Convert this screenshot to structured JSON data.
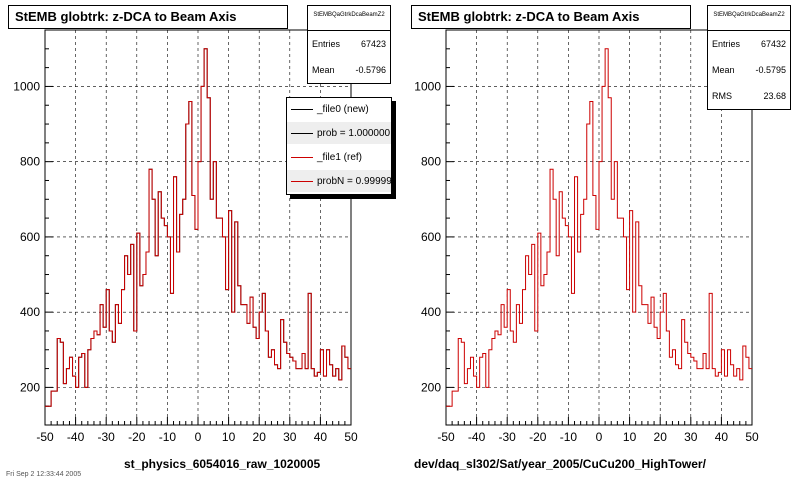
{
  "panels": [
    {
      "title": "StEMB globtrk: z-DCA to Beam Axis",
      "stats": {
        "name": "StEMBQaGtrkDcaBeamZ2",
        "rows": [
          {
            "label": "Entries",
            "value": "67423"
          },
          {
            "label": "Mean",
            "value": "-0.5796"
          }
        ]
      },
      "legend": [
        {
          "label": "_file0 (new)",
          "color": "#000000",
          "shaded": false
        },
        {
          "label": "prob = 1.000000",
          "color": "#000000",
          "shaded": true
        },
        {
          "label": "_file1 (ref)",
          "color": "#cc0000",
          "shaded": false
        },
        {
          "label": "probN = 0.999999",
          "color": "#cc0000",
          "shaded": true
        }
      ],
      "caption": "st_physics_6054016_raw_1020005"
    },
    {
      "title": "StEMB globtrk: z-DCA to Beam Axis",
      "stats": {
        "name": "StEMBQaGtrkDcaBeamZ2",
        "rows": [
          {
            "label": "Entries",
            "value": "67432"
          },
          {
            "label": "Mean",
            "value": "-0.5795"
          },
          {
            "label": "RMS",
            "value": "23.68"
          }
        ]
      },
      "legend": [],
      "caption": "dev/daq_sl302/Sat/year_2005/CuCu200_HighTower/"
    }
  ],
  "footer": "Fri Sep  2 12:33:44 2005",
  "chart_data": [
    {
      "type": "line",
      "style": "step-histogram",
      "title": "StEMB globtrk: z-DCA to Beam Axis",
      "xlabel": "st_physics_6054016_raw_1020005",
      "ylabel": "",
      "xlim": [
        -50,
        50
      ],
      "ylim": [
        100,
        1150
      ],
      "x_ticks": [
        -50,
        -40,
        -30,
        -20,
        -10,
        0,
        10,
        20,
        30,
        40,
        50
      ],
      "y_ticks": [
        200,
        400,
        600,
        800,
        1000
      ],
      "grid": true,
      "legend_position": "top-right",
      "bin_edges_start": -50,
      "bin_width": 1,
      "series": [
        {
          "name": "_file0 (new)",
          "color": "#000000",
          "values": [
            150,
            150,
            190,
            190,
            330,
            320,
            210,
            250,
            280,
            230,
            200,
            280,
            290,
            200,
            300,
            330,
            350,
            340,
            420,
            360,
            460,
            350,
            320,
            420,
            370,
            460,
            550,
            500,
            580,
            350,
            610,
            470,
            500,
            560,
            780,
            700,
            550,
            720,
            650,
            630,
            600,
            450,
            760,
            560,
            660,
            700,
            900,
            960,
            710,
            620,
            800,
            1000,
            1100,
            970,
            700,
            800,
            650,
            650,
            600,
            460,
            670,
            400,
            640,
            470,
            420,
            420,
            370,
            440,
            360,
            330,
            400,
            450,
            350,
            280,
            300,
            260,
            250,
            380,
            320,
            290,
            280,
            270,
            250,
            250,
            290,
            250,
            450,
            250,
            230,
            240,
            300,
            230,
            300,
            260,
            230,
            250,
            220,
            310,
            280,
            250
          ]
        },
        {
          "name": "_file1 (ref)",
          "color": "#cc0000",
          "values": [
            150,
            150,
            190,
            190,
            330,
            320,
            210,
            250,
            280,
            230,
            200,
            280,
            290,
            200,
            300,
            330,
            350,
            340,
            420,
            360,
            460,
            350,
            320,
            420,
            370,
            460,
            550,
            500,
            580,
            350,
            610,
            470,
            500,
            560,
            780,
            700,
            550,
            720,
            650,
            630,
            600,
            450,
            760,
            560,
            660,
            700,
            900,
            960,
            710,
            620,
            800,
            1000,
            1100,
            970,
            700,
            800,
            650,
            650,
            600,
            460,
            670,
            400,
            640,
            470,
            420,
            420,
            370,
            440,
            360,
            330,
            400,
            450,
            350,
            280,
            300,
            260,
            250,
            380,
            320,
            290,
            280,
            270,
            250,
            250,
            290,
            250,
            450,
            250,
            230,
            240,
            300,
            230,
            300,
            260,
            230,
            250,
            220,
            310,
            280,
            250
          ]
        }
      ]
    },
    {
      "type": "line",
      "style": "step-histogram",
      "title": "StEMB globtrk: z-DCA to Beam Axis",
      "xlabel": "dev/daq_sl302/Sat/year_2005/CuCu200_HighTower/",
      "ylabel": "",
      "xlim": [
        -50,
        50
      ],
      "ylim": [
        100,
        1150
      ],
      "x_ticks": [
        -50,
        -40,
        -30,
        -20,
        -10,
        0,
        10,
        20,
        30,
        40,
        50
      ],
      "y_ticks": [
        200,
        400,
        600,
        800,
        1000
      ],
      "grid": true,
      "bin_edges_start": -50,
      "bin_width": 1,
      "series": [
        {
          "name": "",
          "color": "#cc0000",
          "values": [
            150,
            150,
            190,
            190,
            330,
            320,
            210,
            250,
            280,
            230,
            200,
            280,
            290,
            200,
            300,
            330,
            350,
            340,
            420,
            360,
            460,
            350,
            320,
            420,
            370,
            460,
            550,
            500,
            580,
            350,
            610,
            470,
            500,
            560,
            780,
            700,
            550,
            720,
            650,
            630,
            600,
            450,
            760,
            560,
            660,
            700,
            900,
            960,
            710,
            620,
            800,
            1000,
            1100,
            970,
            700,
            800,
            650,
            650,
            600,
            460,
            670,
            400,
            640,
            470,
            420,
            420,
            370,
            440,
            360,
            330,
            400,
            450,
            350,
            280,
            300,
            260,
            250,
            380,
            320,
            290,
            280,
            270,
            250,
            250,
            290,
            250,
            450,
            250,
            230,
            240,
            300,
            230,
            300,
            260,
            230,
            250,
            220,
            310,
            280,
            250
          ]
        }
      ]
    }
  ]
}
